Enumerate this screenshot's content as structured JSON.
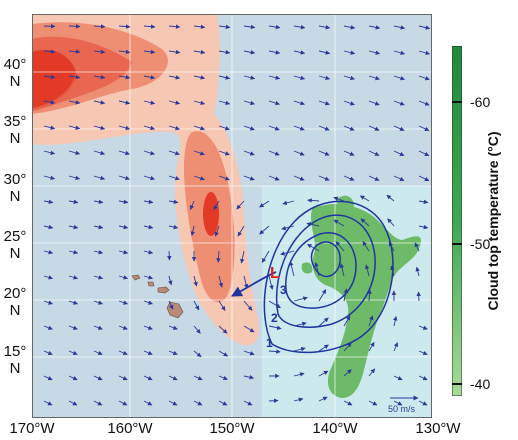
{
  "map": {
    "lat_labels": [
      {
        "deg": "40°",
        "hemi": "N"
      },
      {
        "deg": "35°",
        "hemi": "N"
      },
      {
        "deg": "30°",
        "hemi": "N"
      },
      {
        "deg": "25°",
        "hemi": "N"
      },
      {
        "deg": "20°",
        "hemi": "N"
      },
      {
        "deg": "15°",
        "hemi": "N"
      }
    ],
    "lon_labels": [
      "170°W",
      "160°W",
      "150°W",
      "140°W",
      "130°W"
    ],
    "low_marker": "L",
    "contour_labels": [
      "1",
      "2",
      "3"
    ],
    "vector_scale_label": "50 m/s"
  },
  "colorbar": {
    "title": "Cloud top temperature (°C)",
    "ticks": [
      "-60",
      "-50",
      "-40"
    ]
  },
  "colors": {
    "ocean": "#c7d9e4",
    "inset_ocean": "#cce9ee",
    "vectors": "#2b3a9a",
    "contours": "#1f35a0",
    "low_marker": "#e0201a",
    "cloud": "#6dbb68",
    "shading_light": "#f6c7b3",
    "shading_mid": "#ee8f74",
    "shading_dark": "#e23a26"
  }
}
